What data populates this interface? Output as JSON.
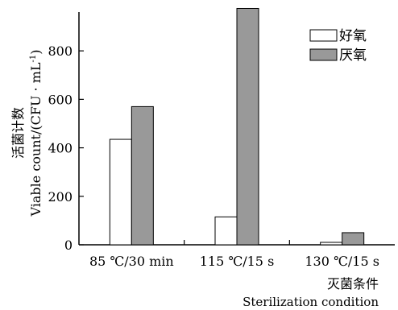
{
  "chart_data": {
    "type": "bar",
    "categories": [
      "85 ℃/30 min",
      "115 ℃/15 s",
      "130 ℃/15 s"
    ],
    "series": [
      {
        "name": "好氧",
        "values": [
          435,
          115,
          10
        ],
        "color": "#ffffff"
      },
      {
        "name": "厌氧",
        "values": [
          570,
          975,
          50
        ],
        "color": "#999999"
      }
    ],
    "ylim": [
      0,
      960
    ],
    "yticks": [
      0,
      200,
      400,
      600,
      800
    ],
    "ylabel_cn": "活菌计数",
    "ylabel_en": "Viable count/(CFU · mL",
    "ylabel_en_sup": "-1",
    "ylabel_en_close": ")",
    "xlabel_cn": "灭菌条件",
    "xlabel_en": "Sterilization condition",
    "legend_position": "top-right",
    "grid": false
  }
}
